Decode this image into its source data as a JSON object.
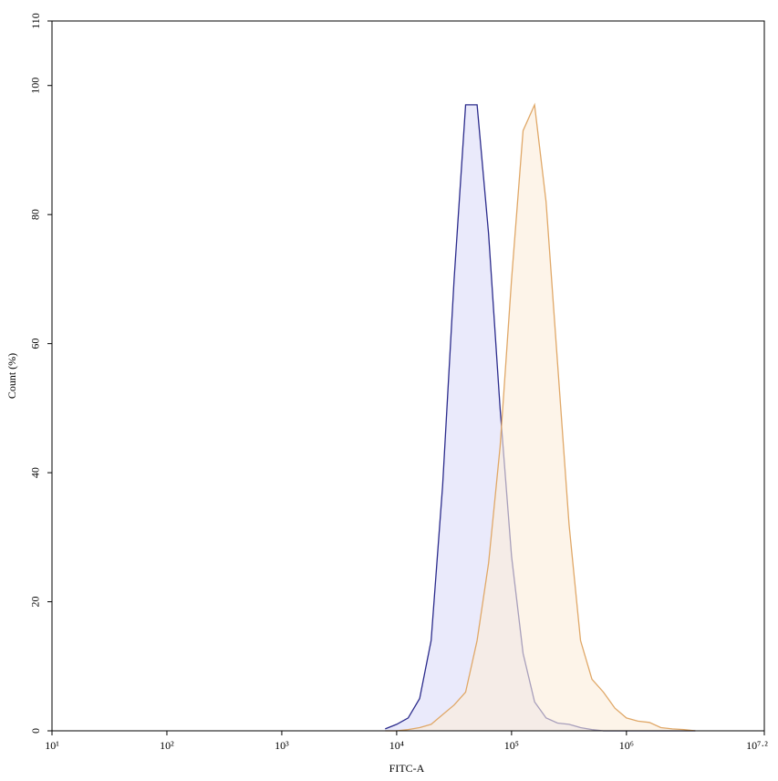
{
  "chart_data": {
    "type": "histogram-overlay",
    "x_label": "FITC-A",
    "y_label": "Count (%)",
    "x_log": true,
    "xlim": [
      10,
      15848931.92
    ],
    "xticks": [
      {
        "value": 10,
        "label": "10¹"
      },
      {
        "value": 100,
        "label": "10²"
      },
      {
        "value": 1000,
        "label": "10³"
      },
      {
        "value": 10000,
        "label": "10⁴"
      },
      {
        "value": 100000,
        "label": "10⁵"
      },
      {
        "value": 1000000,
        "label": "10⁶"
      },
      {
        "value": 15848931.92,
        "label": "10⁷·²"
      }
    ],
    "ylim": [
      0,
      110
    ],
    "yticks": [
      0,
      20,
      40,
      60,
      80,
      100,
      110
    ],
    "x": [
      7943,
      10000,
      12589,
      15849,
      19953,
      25119,
      31623,
      39811,
      50119,
      63096,
      79433,
      100000,
      125893,
      158489,
      199526,
      251189,
      316228,
      398107,
      501187,
      630957,
      794328,
      1000000,
      1258925,
      1584893,
      1995262,
      2511886,
      3162278,
      3981072
    ],
    "series": [
      {
        "color": "#2b2b8c",
        "fill": "#dcdcf9",
        "values": [
          0.3,
          1,
          2,
          5,
          14,
          38,
          70,
          97,
          97,
          77,
          50,
          27,
          12,
          4.5,
          2,
          1.2,
          1,
          0.5,
          0.2,
          0,
          0,
          0,
          0,
          0,
          0,
          0,
          0,
          0
        ]
      },
      {
        "color": "#e0a868",
        "fill": "#fcecdb",
        "values": [
          0,
          0,
          0.2,
          0.5,
          1,
          2.5,
          4,
          6,
          14,
          26,
          44,
          70,
          93,
          97,
          82,
          57,
          32,
          14,
          8,
          6,
          3.5,
          2,
          1.5,
          1.3,
          0.5,
          0.3,
          0.2,
          0
        ]
      }
    ]
  }
}
